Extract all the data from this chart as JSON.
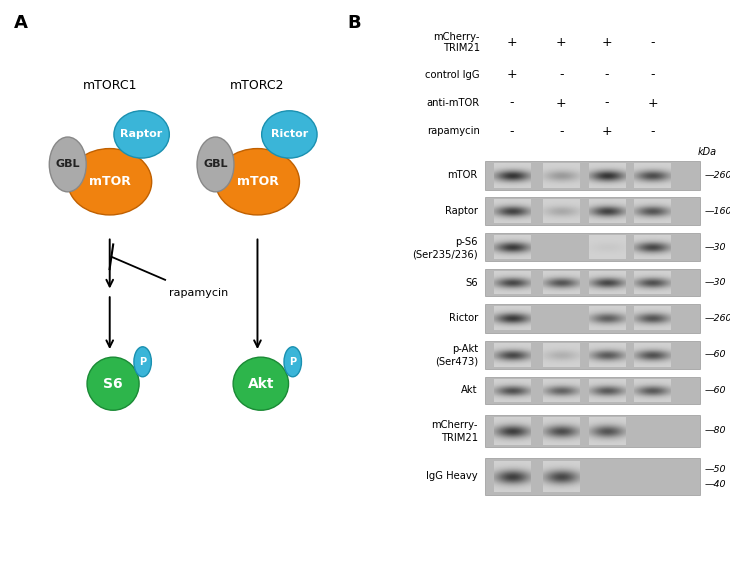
{
  "panel_A_label": "A",
  "panel_B_label": "B",
  "mtorc1_label": "mTORC1",
  "mtorc2_label": "mTORC2",
  "gbl_color": "#aaaaaa",
  "mtor_color": "#f0820f",
  "raptor_color": "#3ab5d8",
  "rictor_color": "#3ab5d8",
  "s6_color": "#2db54b",
  "akt_color": "#2db54b",
  "p_color": "#3ab5d8",
  "rapamycin_label": "rapamycin",
  "bg_color": "#ffffff",
  "cond_labels": [
    "mCherry-\nTRIM21",
    "control IgG",
    "anti-mTOR",
    "rapamycin"
  ],
  "cond_values": [
    [
      "+",
      "+",
      "+",
      "-"
    ],
    [
      "+",
      "-",
      "-",
      "-"
    ],
    [
      "-",
      "+",
      "-",
      "+"
    ],
    [
      "-",
      "-",
      "+",
      "-"
    ]
  ],
  "wb_rows": [
    {
      "label": "mTOR",
      "label2": null,
      "kda": "260",
      "kda2": null,
      "bands": [
        0.85,
        0.3,
        0.85,
        0.72
      ]
    },
    {
      "label": "Raptor",
      "label2": null,
      "kda": "160",
      "kda2": null,
      "bands": [
        0.78,
        0.22,
        0.78,
        0.68
      ]
    },
    {
      "label": "p-S6",
      "label2": "(Ser235/236)",
      "kda": "30",
      "kda2": null,
      "bands": [
        0.82,
        0.0,
        0.05,
        0.75
      ]
    },
    {
      "label": "S6",
      "label2": null,
      "kda": "30",
      "kda2": null,
      "bands": [
        0.75,
        0.68,
        0.75,
        0.7
      ]
    },
    {
      "label": "Rictor",
      "label2": null,
      "kda": "260",
      "kda2": null,
      "bands": [
        0.82,
        0.0,
        0.62,
        0.68
      ]
    },
    {
      "label": "p-Akt",
      "label2": "(Ser473)",
      "kda": "60",
      "kda2": null,
      "bands": [
        0.75,
        0.18,
        0.65,
        0.7
      ]
    },
    {
      "label": "Akt",
      "label2": null,
      "kda": "60",
      "kda2": null,
      "bands": [
        0.7,
        0.6,
        0.65,
        0.65
      ]
    },
    {
      "label": "mCherry-",
      "label2": "TRIM21",
      "kda": "80",
      "kda2": null,
      "bands": [
        0.8,
        0.72,
        0.68,
        0.0
      ]
    },
    {
      "label": "IgG Heavy",
      "label2": null,
      "kda": "50",
      "kda2": "40",
      "bands": [
        0.8,
        0.75,
        0.0,
        0.0
      ]
    }
  ]
}
